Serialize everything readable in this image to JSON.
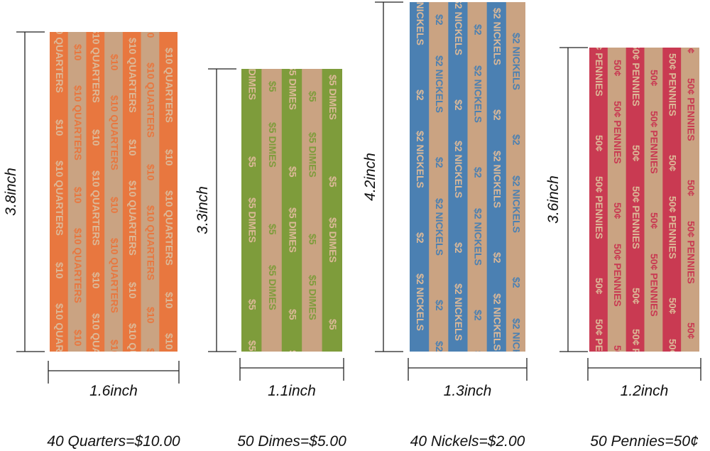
{
  "wrappers": [
    {
      "height": "3.8inch",
      "width": "1.6inch",
      "caption": "40 Quarters=$10.00",
      "label": "$10 QUARTERS",
      "short": "$10"
    },
    {
      "height": "3.3inch",
      "width": "1.1inch",
      "caption": "50 Dimes=$5.00",
      "label": "$5 DIMES",
      "short": "$5"
    },
    {
      "height": "4.2inch",
      "width": "1.3inch",
      "caption": "40 Nickels=$2.00",
      "label": "$2 NICKELS",
      "short": "$2"
    },
    {
      "height": "3.6inch",
      "width": "1.2inch",
      "caption": "50 Pennies=50¢",
      "label": "50¢ PENNIES",
      "short": "50¢"
    }
  ]
}
